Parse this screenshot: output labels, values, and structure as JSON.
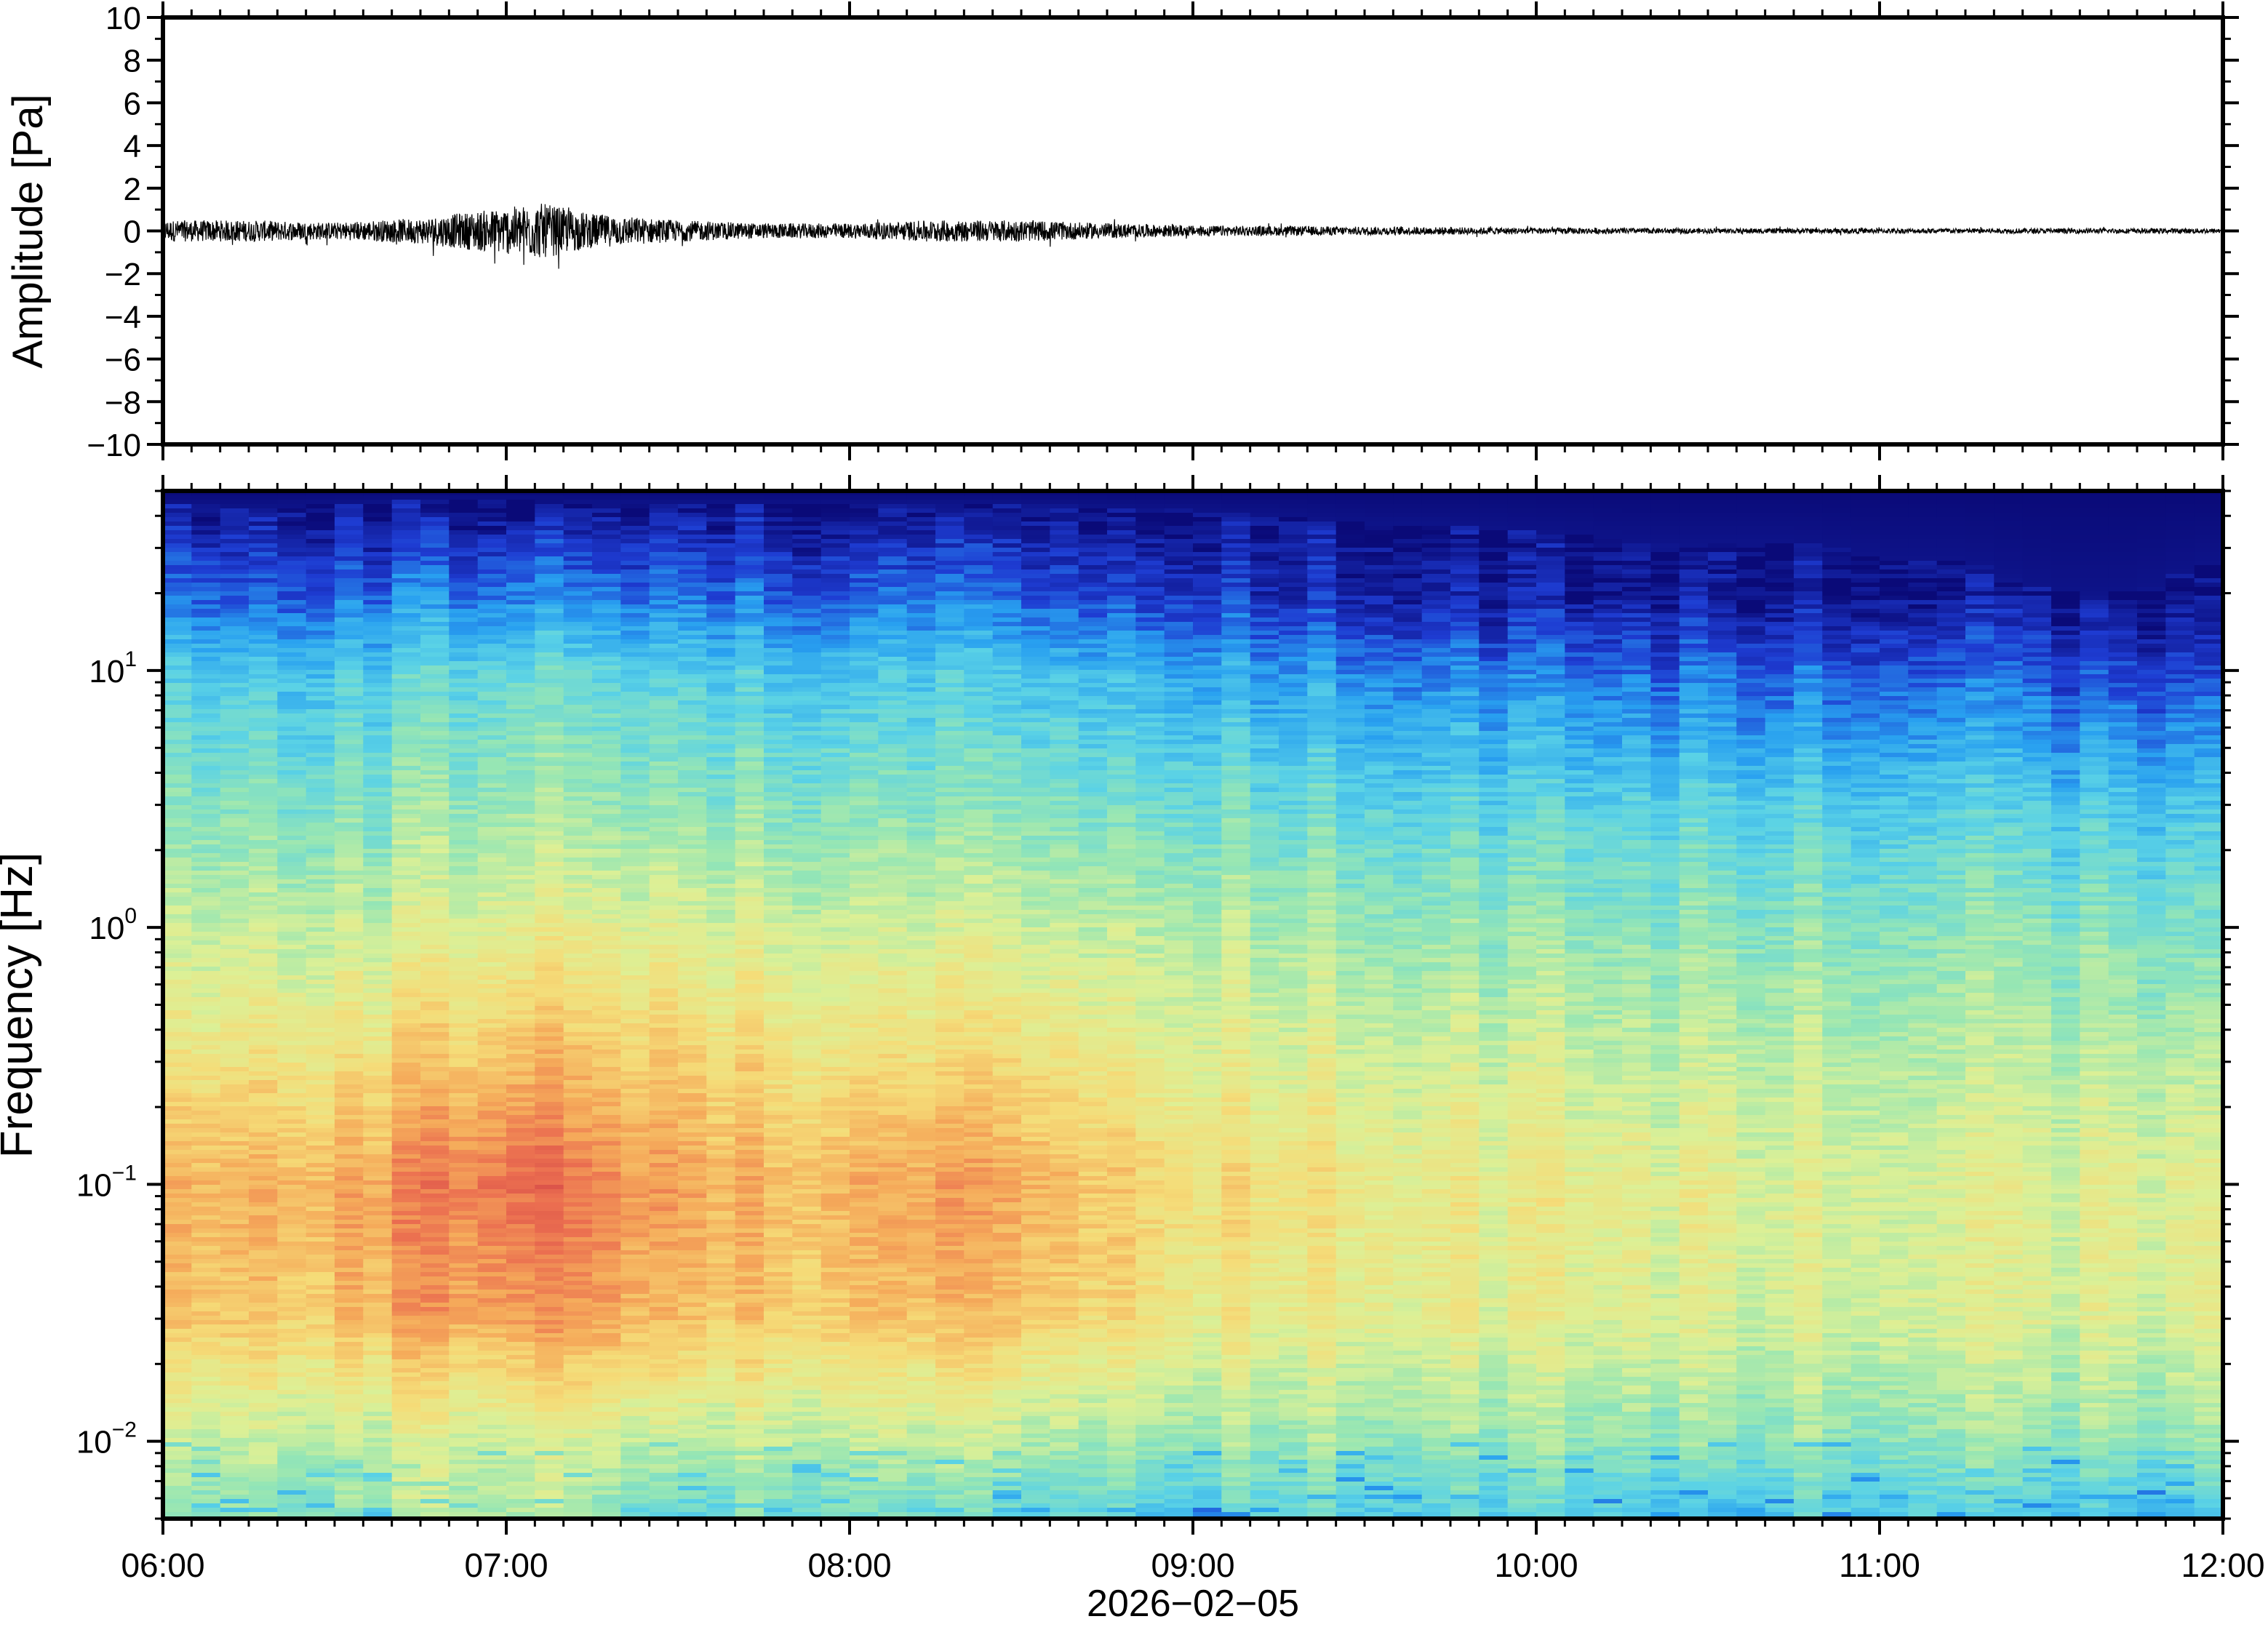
{
  "chart_data": [
    {
      "type": "line",
      "panel": "waveform",
      "ylabel": "Amplitude [Pa]",
      "ylim": [
        -10,
        10
      ],
      "yticks": [
        10,
        8,
        6,
        4,
        2,
        0,
        -2,
        -4,
        -6,
        -8,
        -10
      ],
      "ytick_labels": [
        "10",
        "8",
        "6",
        "4",
        "2",
        "0",
        "−2",
        "−4",
        "−6",
        "−8",
        "−10"
      ],
      "xlim_hours": [
        6,
        12
      ],
      "grid": false,
      "series": [
        {
          "x_hours": [
            6.0,
            6.25,
            6.5,
            6.75,
            6.9,
            7.0,
            7.1,
            7.25,
            7.5,
            7.75,
            8.0,
            8.25,
            8.5,
            8.75,
            9.0,
            9.5,
            10.0,
            10.5,
            11.0,
            11.5,
            12.0
          ],
          "envelope": [
            0.5,
            0.5,
            0.4,
            0.6,
            0.9,
            1.1,
            1.3,
            0.8,
            0.5,
            0.35,
            0.35,
            0.5,
            0.5,
            0.35,
            0.25,
            0.2,
            0.15,
            0.12,
            0.12,
            0.12,
            0.12
          ]
        }
      ]
    },
    {
      "type": "heatmap",
      "panel": "spectrogram",
      "ylabel": "Frequency [Hz]",
      "yscale": "log",
      "ylim": [
        0.005,
        50
      ],
      "yticks": [
        0.01,
        0.1,
        1,
        10
      ],
      "ytick_labels": [
        {
          "base": "10",
          "exp": "−2"
        },
        {
          "base": "10",
          "exp": "−1"
        },
        {
          "base": "10",
          "exp": "0"
        },
        {
          "base": "10",
          "exp": "1"
        }
      ],
      "colormap": "jet",
      "colormap_stops": [
        "#0a0a78",
        "#1e3cd2",
        "#28a0f0",
        "#5ad2e6",
        "#96e6b4",
        "#dcf096",
        "#f5dc78",
        "#f5aa5a",
        "#eb6e50",
        "#d24646"
      ],
      "time_hours": [
        6.0,
        6.25,
        6.5,
        6.75,
        7.0,
        7.25,
        7.5,
        7.75,
        8.0,
        8.25,
        8.5,
        8.75,
        9.0,
        9.25,
        9.5,
        9.75,
        10.0,
        10.25,
        10.5,
        10.75,
        11.0,
        11.25,
        11.5,
        11.75,
        12.0
      ],
      "log10_freq_levels": [
        -2.3,
        -2.0,
        -1.5,
        -1.0,
        -0.5,
        0.0,
        0.5,
        1.0,
        1.3,
        1.7
      ],
      "intensity": [
        [
          0.4,
          0.5,
          0.7,
          0.74,
          0.6,
          0.5,
          0.4,
          0.3,
          0.15,
          0.0
        ],
        [
          0.42,
          0.5,
          0.7,
          0.74,
          0.62,
          0.5,
          0.4,
          0.28,
          0.12,
          0.0
        ],
        [
          0.4,
          0.5,
          0.72,
          0.76,
          0.63,
          0.52,
          0.4,
          0.3,
          0.15,
          0.0
        ],
        [
          0.5,
          0.55,
          0.8,
          0.85,
          0.7,
          0.55,
          0.45,
          0.35,
          0.2,
          0.0
        ],
        [
          0.5,
          0.55,
          0.82,
          0.92,
          0.75,
          0.6,
          0.48,
          0.38,
          0.2,
          0.0
        ],
        [
          0.45,
          0.55,
          0.8,
          0.86,
          0.72,
          0.58,
          0.45,
          0.35,
          0.18,
          0.0
        ],
        [
          0.3,
          0.5,
          0.72,
          0.78,
          0.68,
          0.55,
          0.42,
          0.32,
          0.16,
          0.0
        ],
        [
          0.38,
          0.52,
          0.7,
          0.74,
          0.65,
          0.54,
          0.42,
          0.3,
          0.15,
          0.0
        ],
        [
          0.38,
          0.52,
          0.72,
          0.76,
          0.64,
          0.54,
          0.42,
          0.3,
          0.15,
          0.0
        ],
        [
          0.38,
          0.52,
          0.74,
          0.8,
          0.66,
          0.55,
          0.42,
          0.32,
          0.18,
          0.0
        ],
        [
          0.36,
          0.5,
          0.72,
          0.78,
          0.66,
          0.54,
          0.42,
          0.3,
          0.15,
          0.0
        ],
        [
          0.36,
          0.48,
          0.68,
          0.72,
          0.62,
          0.52,
          0.4,
          0.28,
          0.12,
          0.0
        ],
        [
          0.28,
          0.46,
          0.62,
          0.66,
          0.58,
          0.5,
          0.38,
          0.25,
          0.1,
          0.0
        ],
        [
          0.35,
          0.45,
          0.6,
          0.64,
          0.56,
          0.48,
          0.36,
          0.22,
          0.08,
          0.0
        ],
        [
          0.32,
          0.45,
          0.6,
          0.62,
          0.55,
          0.46,
          0.35,
          0.2,
          0.06,
          0.0
        ],
        [
          0.34,
          0.46,
          0.6,
          0.62,
          0.55,
          0.46,
          0.35,
          0.2,
          0.06,
          0.0
        ],
        [
          0.33,
          0.45,
          0.58,
          0.6,
          0.54,
          0.45,
          0.34,
          0.18,
          0.05,
          0.0
        ],
        [
          0.33,
          0.45,
          0.58,
          0.6,
          0.52,
          0.44,
          0.33,
          0.17,
          0.04,
          0.0
        ],
        [
          0.25,
          0.44,
          0.56,
          0.58,
          0.52,
          0.44,
          0.33,
          0.16,
          0.04,
          0.0
        ],
        [
          0.33,
          0.45,
          0.56,
          0.58,
          0.52,
          0.44,
          0.33,
          0.16,
          0.04,
          0.0
        ],
        [
          0.33,
          0.44,
          0.56,
          0.56,
          0.5,
          0.43,
          0.32,
          0.15,
          0.03,
          0.0
        ],
        [
          0.32,
          0.44,
          0.55,
          0.56,
          0.5,
          0.43,
          0.32,
          0.15,
          0.03,
          0.0
        ],
        [
          0.3,
          0.44,
          0.55,
          0.56,
          0.5,
          0.42,
          0.3,
          0.12,
          0.02,
          0.0
        ],
        [
          0.28,
          0.44,
          0.56,
          0.58,
          0.5,
          0.42,
          0.3,
          0.12,
          0.02,
          0.0
        ],
        [
          0.33,
          0.48,
          0.6,
          0.6,
          0.52,
          0.42,
          0.32,
          0.14,
          0.03,
          0.0
        ]
      ]
    }
  ],
  "x_axis": {
    "tick_labels": [
      "06:00",
      "07:00",
      "08:00",
      "09:00",
      "10:00",
      "11:00",
      "12:00"
    ],
    "date_label": "2026−02−05"
  }
}
